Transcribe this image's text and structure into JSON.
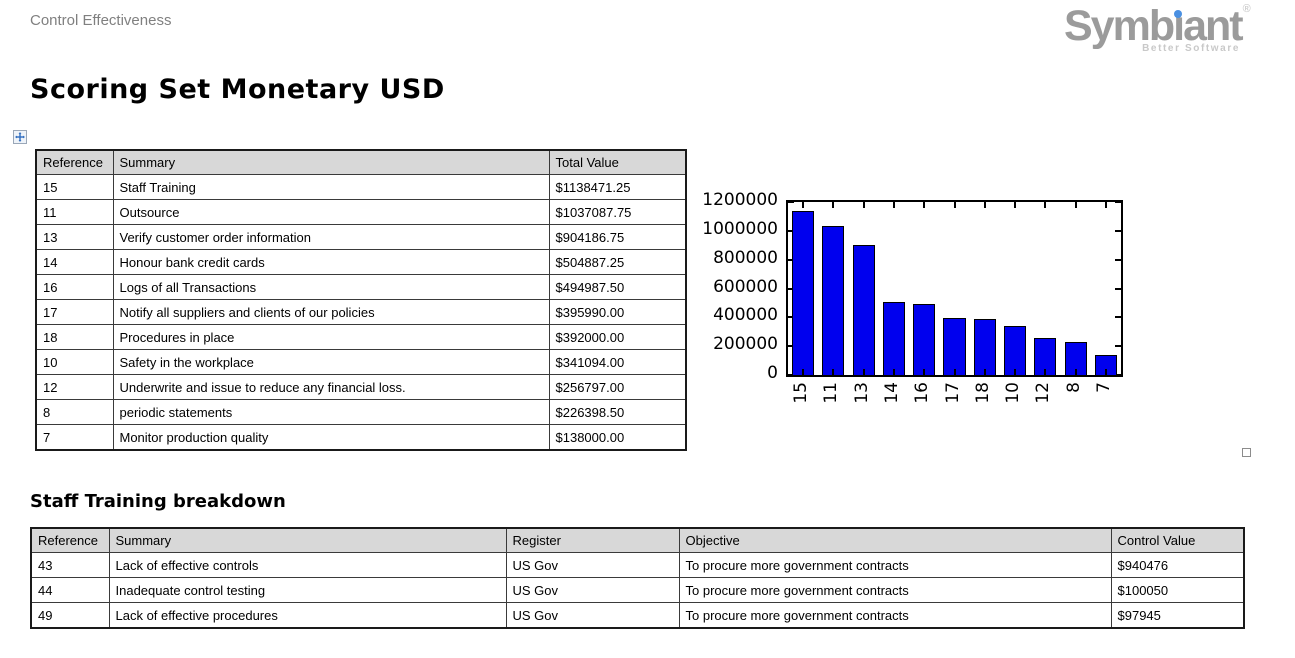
{
  "header": {
    "section_label": "Control Effectiveness"
  },
  "logo": {
    "brand": "Symbiant",
    "brand_pre": "Symb",
    "brand_dotless_i": "ı",
    "brand_post": "ant",
    "registered_mark": "®",
    "tagline": "Better Software",
    "brand_color": "#9b9b9b",
    "dot_color": "#4a90e2",
    "tagline_color": "#c9c9c9"
  },
  "page_title": "Scoring Set Monetary USD",
  "controls_table": {
    "headers": [
      "Reference",
      "Summary",
      "Total Value"
    ],
    "rows": [
      [
        "15",
        "Staff Training",
        "$1138471.25"
      ],
      [
        "11",
        "Outsource",
        "$1037087.75"
      ],
      [
        "13",
        "Verify customer order information",
        "$904186.75"
      ],
      [
        "14",
        "Honour bank credit cards",
        "$504887.25"
      ],
      [
        "16",
        "Logs of all Transactions",
        "$494987.50"
      ],
      [
        "17",
        "Notify all suppliers and clients of our policies",
        "$395990.00"
      ],
      [
        "18",
        "Procedures in place",
        "$392000.00"
      ],
      [
        "10",
        "Safety in the workplace",
        "$341094.00"
      ],
      [
        "12",
        "Underwrite and issue to reduce any financial loss.",
        "$256797.00"
      ],
      [
        "8",
        "periodic statements",
        "$226398.50"
      ],
      [
        "7",
        "Monitor production quality",
        "$138000.00"
      ]
    ]
  },
  "chart_data": {
    "type": "bar",
    "title": "",
    "xlabel": "",
    "ylabel": "",
    "categories": [
      "15",
      "11",
      "13",
      "14",
      "16",
      "17",
      "18",
      "10",
      "12",
      "8",
      "7"
    ],
    "values": [
      1138471.25,
      1037087.75,
      904186.75,
      504887.25,
      494987.5,
      395990.0,
      392000.0,
      341094.0,
      256797.0,
      226398.5,
      138000.0
    ],
    "ylim": [
      0,
      1200000
    ],
    "yticks": [
      0,
      200000,
      400000,
      600000,
      800000,
      1000000,
      1200000
    ],
    "x_tick_rotation": 90,
    "grid": false,
    "legend": "none",
    "bar_color": "#0000ee",
    "bar_edge_color": "#000000"
  },
  "breakdown": {
    "heading": "Staff Training breakdown",
    "table": {
      "headers": [
        "Reference",
        "Summary",
        "Register",
        "Objective",
        "Control Value"
      ],
      "rows": [
        [
          "43",
          "Lack of effective controls",
          "US Gov",
          "To procure more government contracts",
          "$940476"
        ],
        [
          "44",
          "Inadequate control testing",
          "US Gov",
          "To procure more government contracts",
          "$100050"
        ],
        [
          "49",
          "Lack of effective procedures",
          "US Gov",
          "To procure more government contracts",
          "$97945"
        ]
      ]
    }
  },
  "icons": {
    "move_handle": "move-arrows-icon",
    "corner_marker": "anchor-square-icon"
  }
}
